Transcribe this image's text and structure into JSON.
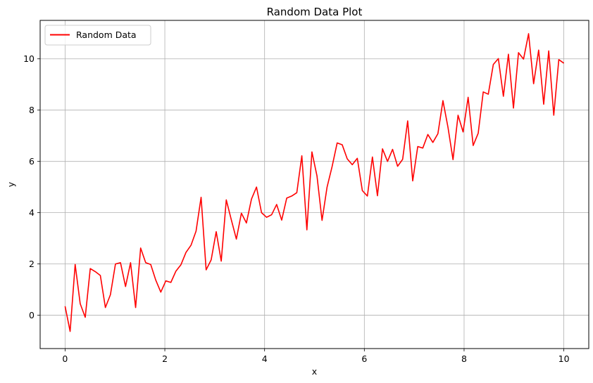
{
  "chart_data": {
    "type": "line",
    "title": "Random Data Plot",
    "xlabel": "x",
    "ylabel": "y",
    "xlim": [
      -0.5,
      10.5
    ],
    "ylim": [
      -1.3,
      11.5
    ],
    "xticks": [
      0,
      2,
      4,
      6,
      8,
      10
    ],
    "yticks": [
      0,
      2,
      4,
      6,
      8,
      10
    ],
    "grid": true,
    "legend_position": "top-left",
    "series": [
      {
        "name": "Random Data",
        "color": "#ff0000",
        "x": [
          0.0,
          0.101,
          0.202,
          0.303,
          0.404,
          0.505,
          0.606,
          0.707,
          0.808,
          0.909,
          1.01,
          1.111,
          1.212,
          1.313,
          1.414,
          1.515,
          1.616,
          1.717,
          1.818,
          1.919,
          2.02,
          2.121,
          2.222,
          2.323,
          2.424,
          2.525,
          2.626,
          2.727,
          2.828,
          2.929,
          3.03,
          3.131,
          3.232,
          3.333,
          3.434,
          3.535,
          3.636,
          3.737,
          3.838,
          3.939,
          4.04,
          4.141,
          4.242,
          4.343,
          4.444,
          4.545,
          4.646,
          4.747,
          4.848,
          4.949,
          5.051,
          5.152,
          5.253,
          5.354,
          5.455,
          5.556,
          5.657,
          5.758,
          5.859,
          5.96,
          6.061,
          6.162,
          6.263,
          6.364,
          6.465,
          6.566,
          6.667,
          6.768,
          6.869,
          6.97,
          7.071,
          7.172,
          7.273,
          7.374,
          7.475,
          7.576,
          7.677,
          7.778,
          7.879,
          7.98,
          8.081,
          8.182,
          8.283,
          8.384,
          8.485,
          8.586,
          8.687,
          8.788,
          8.889,
          8.99,
          9.091,
          9.192,
          9.293,
          9.394,
          9.495,
          9.596,
          9.697,
          9.798,
          9.899,
          10.0
        ],
        "y": [
          0.35,
          -0.63,
          1.98,
          0.45,
          -0.08,
          1.82,
          1.7,
          1.55,
          0.3,
          0.8,
          2.0,
          2.05,
          1.12,
          2.05,
          0.3,
          2.62,
          2.05,
          1.98,
          1.37,
          0.9,
          1.34,
          1.28,
          1.72,
          1.97,
          2.45,
          2.73,
          3.28,
          4.6,
          1.77,
          2.16,
          3.26,
          2.11,
          4.5,
          3.72,
          2.97,
          3.98,
          3.6,
          4.53,
          5.0,
          4.0,
          3.82,
          3.92,
          4.32,
          3.71,
          4.57,
          4.65,
          4.78,
          6.22,
          3.33,
          6.37,
          5.43,
          3.7,
          5.0,
          5.8,
          6.72,
          6.65,
          6.1,
          5.87,
          6.12,
          4.86,
          4.65,
          6.17,
          4.66,
          6.49,
          6.0,
          6.47,
          5.81,
          6.08,
          7.58,
          5.24,
          6.58,
          6.52,
          7.05,
          6.74,
          7.08,
          8.37,
          7.33,
          6.07,
          7.8,
          7.15,
          8.5,
          6.62,
          7.1,
          8.71,
          8.62,
          9.78,
          10.01,
          8.54,
          10.18,
          8.08,
          10.24,
          9.99,
          10.98,
          9.03,
          10.34,
          8.23,
          10.31,
          7.8,
          9.97,
          9.83
        ]
      }
    ]
  }
}
